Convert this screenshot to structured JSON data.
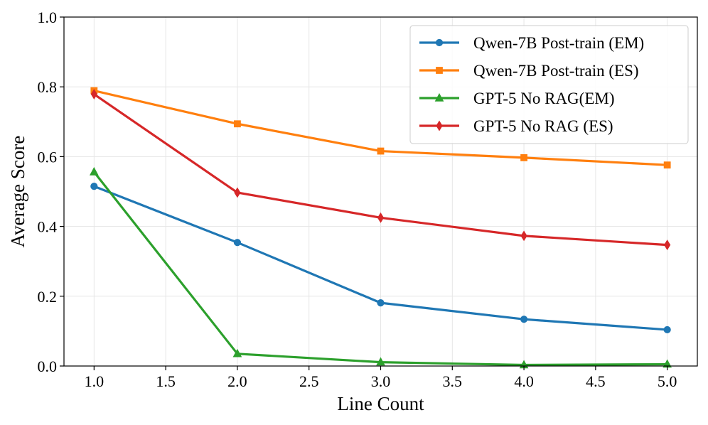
{
  "chart_data": {
    "type": "line",
    "title": "",
    "xlabel": "Line Count",
    "ylabel": "Average Score",
    "xlim": [
      0.79,
      5.21
    ],
    "ylim": [
      0.0,
      1.0
    ],
    "x_ticks": [
      1.0,
      1.5,
      2.0,
      2.5,
      3.0,
      3.5,
      4.0,
      4.5,
      5.0
    ],
    "x_tick_labels": [
      "1.0",
      "1.5",
      "2.0",
      "2.5",
      "3.0",
      "3.5",
      "4.0",
      "4.5",
      "5.0"
    ],
    "y_ticks": [
      0.0,
      0.2,
      0.4,
      0.6,
      0.8,
      1.0
    ],
    "y_tick_labels": [
      "0.0",
      "0.2",
      "0.4",
      "0.6",
      "0.8",
      "1.0"
    ],
    "grid": true,
    "legend_position": "top-right",
    "x": [
      1,
      2,
      3,
      4,
      5
    ],
    "series": [
      {
        "name": "Qwen-7B Post-train (EM)",
        "color": "#1f77b4",
        "marker": "circle",
        "values": [
          0.515,
          0.354,
          0.181,
          0.134,
          0.104
        ]
      },
      {
        "name": "Qwen-7B Post-train (ES)",
        "color": "#ff7f0e",
        "marker": "square",
        "values": [
          0.789,
          0.694,
          0.616,
          0.597,
          0.576
        ]
      },
      {
        "name": "GPT-5 No RAG(EM)",
        "color": "#2ca02c",
        "marker": "triangle",
        "values": [
          0.556,
          0.035,
          0.011,
          0.003,
          0.005
        ]
      },
      {
        "name": "GPT-5 No RAG (ES)",
        "color": "#d62728",
        "marker": "diamond",
        "values": [
          0.779,
          0.497,
          0.425,
          0.373,
          0.347
        ]
      }
    ]
  }
}
